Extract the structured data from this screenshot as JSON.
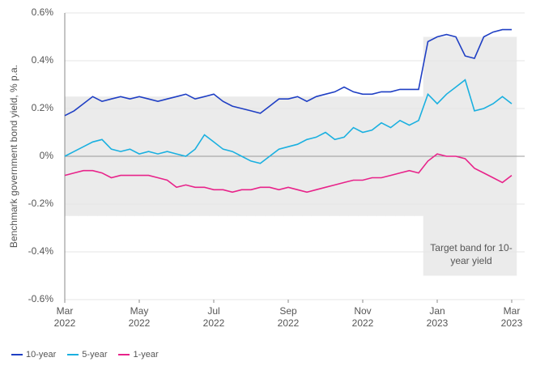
{
  "chart_data": {
    "type": "line",
    "y_label": "Benchmark government bond yield, % p.a.",
    "categories": [
      "Mar 2022",
      null,
      null,
      null,
      null,
      null,
      null,
      null,
      "May 2022",
      null,
      null,
      null,
      null,
      null,
      null,
      null,
      "Jul 2022",
      null,
      null,
      null,
      null,
      null,
      null,
      null,
      "Sep 2022",
      null,
      null,
      null,
      null,
      null,
      null,
      null,
      "Nov 2022",
      null,
      null,
      null,
      null,
      null,
      null,
      null,
      "Jan 2023",
      null,
      null,
      null,
      null,
      null,
      null,
      null,
      "Mar 2023"
    ],
    "series": [
      {
        "name": "10-year",
        "color": "#1f3fc4",
        "values": [
          0.17,
          0.19,
          0.22,
          0.25,
          0.23,
          0.24,
          0.25,
          0.24,
          0.25,
          0.24,
          0.23,
          0.24,
          0.25,
          0.26,
          0.24,
          0.25,
          0.26,
          0.23,
          0.21,
          0.2,
          0.19,
          0.18,
          0.21,
          0.24,
          0.24,
          0.25,
          0.23,
          0.25,
          0.26,
          0.27,
          0.29,
          0.27,
          0.26,
          0.26,
          0.27,
          0.27,
          0.28,
          0.28,
          0.28,
          0.48,
          0.5,
          0.51,
          0.5,
          0.42,
          0.41,
          0.5,
          0.52,
          0.53,
          0.53
        ]
      },
      {
        "name": "5-year",
        "color": "#1ab0e0",
        "values": [
          0.0,
          0.02,
          0.04,
          0.06,
          0.07,
          0.03,
          0.02,
          0.03,
          0.01,
          0.02,
          0.01,
          0.02,
          0.01,
          0.0,
          0.03,
          0.09,
          0.06,
          0.03,
          0.02,
          0.0,
          -0.02,
          -0.03,
          0.0,
          0.03,
          0.04,
          0.05,
          0.07,
          0.08,
          0.1,
          0.07,
          0.08,
          0.12,
          0.1,
          0.11,
          0.14,
          0.12,
          0.15,
          0.13,
          0.15,
          0.26,
          0.22,
          0.26,
          0.29,
          0.32,
          0.19,
          0.2,
          0.22,
          0.25,
          0.22
        ]
      },
      {
        "name": "1-year",
        "color": "#e8238a",
        "values": [
          -0.08,
          -0.07,
          -0.06,
          -0.06,
          -0.07,
          -0.09,
          -0.08,
          -0.08,
          -0.08,
          -0.08,
          -0.09,
          -0.1,
          -0.13,
          -0.12,
          -0.13,
          -0.13,
          -0.14,
          -0.14,
          -0.15,
          -0.14,
          -0.14,
          -0.13,
          -0.13,
          -0.14,
          -0.13,
          -0.14,
          -0.15,
          -0.14,
          -0.13,
          -0.12,
          -0.11,
          -0.1,
          -0.1,
          -0.09,
          -0.09,
          -0.08,
          -0.07,
          -0.06,
          -0.07,
          -0.02,
          0.01,
          0.0,
          0.0,
          -0.01,
          -0.05,
          -0.07,
          -0.09,
          -0.11,
          -0.08
        ]
      }
    ],
    "band": {
      "label": "Target band for 10-year yield",
      "color": "#ebebeb",
      "upper": [
        0.25,
        0.25,
        0.25,
        0.25,
        0.25,
        0.25,
        0.25,
        0.25,
        0.25,
        0.25,
        0.25,
        0.25,
        0.25,
        0.25,
        0.25,
        0.25,
        0.25,
        0.25,
        0.25,
        0.25,
        0.25,
        0.25,
        0.25,
        0.25,
        0.25,
        0.25,
        0.25,
        0.25,
        0.25,
        0.25,
        0.25,
        0.25,
        0.25,
        0.25,
        0.25,
        0.25,
        0.25,
        0.25,
        0.25,
        0.5,
        0.5,
        0.5,
        0.5,
        0.5,
        0.5,
        0.5,
        0.5,
        0.5,
        0.5
      ],
      "lower": [
        -0.25,
        -0.25,
        -0.25,
        -0.25,
        -0.25,
        -0.25,
        -0.25,
        -0.25,
        -0.25,
        -0.25,
        -0.25,
        -0.25,
        -0.25,
        -0.25,
        -0.25,
        -0.25,
        -0.25,
        -0.25,
        -0.25,
        -0.25,
        -0.25,
        -0.25,
        -0.25,
        -0.25,
        -0.25,
        -0.25,
        -0.25,
        -0.25,
        -0.25,
        -0.25,
        -0.25,
        -0.25,
        -0.25,
        -0.25,
        -0.25,
        -0.25,
        -0.25,
        -0.25,
        -0.25,
        -0.5,
        -0.5,
        -0.5,
        -0.5,
        -0.5,
        -0.5,
        -0.5,
        -0.5,
        -0.5,
        -0.5
      ]
    },
    "ylim": [
      -0.6,
      0.6
    ],
    "yticks": [
      {
        "value": -0.6,
        "label": "-0.6%"
      },
      {
        "value": -0.4,
        "label": "-0.4%"
      },
      {
        "value": -0.2,
        "label": "-0.2%"
      },
      {
        "value": 0,
        "label": "0%"
      },
      {
        "value": 0.2,
        "label": "0.2%"
      },
      {
        "value": 0.4,
        "label": "0.4%"
      },
      {
        "value": 0.6,
        "label": "0.6%"
      }
    ],
    "grid": true,
    "legend": "bottom-left"
  }
}
